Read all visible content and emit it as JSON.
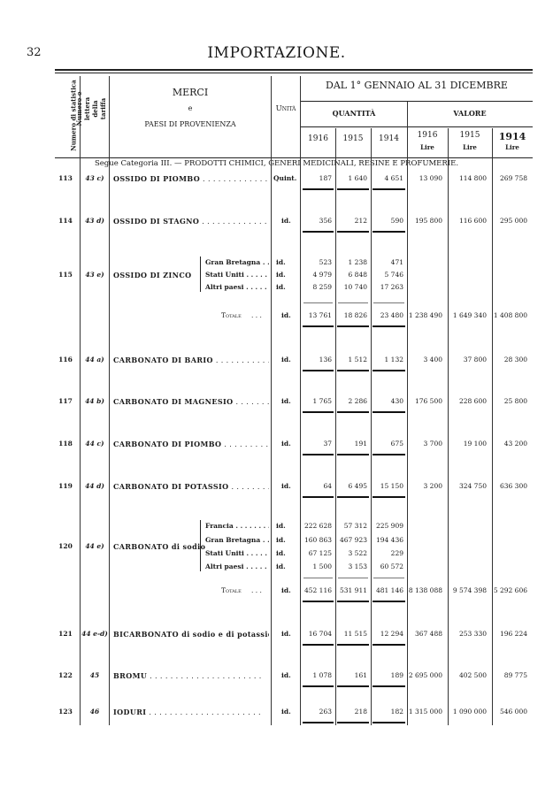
{
  "page_number": "32",
  "title": "IMPORTAZIONE.",
  "header": {
    "col_num_stat": "Numero di statistica",
    "col_tariff": "Numero o lettera della tariffa",
    "merci": "MERCI",
    "e": "e",
    "paesi": "PAESI DI PROVENIENZA",
    "unita": "Unità",
    "period": "DAL 1° GENNAIO AL 31 DICEMBRE",
    "quantita": "QUANTITÀ",
    "valore": "VALORE",
    "years_q": [
      "1916",
      "1915",
      "1914"
    ],
    "years_v": [
      "1916",
      "1915",
      "1914"
    ],
    "lire": "Lire"
  },
  "section": "Segue Categoria III. — PRODOTTI CHIMICI, GENERI MEDICINALI, RESINE E PROFUMERIE.",
  "rows": [
    {
      "num": "113",
      "tariff": "43 c)",
      "name": "OSSIDO DI PIOMBO",
      "unit": "Quint.",
      "q": [
        "187",
        "1 640",
        "4 651"
      ],
      "v": [
        "13 090",
        "114 800",
        "269 758"
      ]
    },
    {
      "num": "114",
      "tariff": "43 d)",
      "name": "OSSIDO DI STAGNO",
      "unit": "id.",
      "q": [
        "356",
        "212",
        "590"
      ],
      "v": [
        "195 800",
        "116 600",
        "295 000"
      ]
    },
    {
      "num": "115",
      "tariff": "43 e)",
      "name": "OSSIDO DI ZINCO",
      "unit": "id.",
      "subs": [
        {
          "country": "Gran Bretagna",
          "unit": "id.",
          "q": [
            "523",
            "1 238",
            "471"
          ]
        },
        {
          "country": "Stati Uniti",
          "unit": "id.",
          "q": [
            "4 979",
            "6 848",
            "5 746"
          ]
        },
        {
          "country": "Altri paesi",
          "unit": "id.",
          "q": [
            "8 259",
            "10 740",
            "17 263"
          ]
        }
      ],
      "total": {
        "label": "Totale",
        "unit": "id.",
        "q": [
          "13 761",
          "18 826",
          "23 480"
        ],
        "v": [
          "1 238 490",
          "1 649 340",
          "1 408 800"
        ]
      }
    },
    {
      "num": "116",
      "tariff": "44 a)",
      "name": "CARBONATO DI BARIO",
      "unit": "id.",
      "q": [
        "136",
        "1 512",
        "1 132"
      ],
      "v": [
        "3 400",
        "37 800",
        "28 300"
      ]
    },
    {
      "num": "117",
      "tariff": "44 b)",
      "name": "CARBONATO DI MAGNESIO",
      "unit": "id.",
      "q": [
        "1 765",
        "2 286",
        "430"
      ],
      "v": [
        "176 500",
        "228 600",
        "25 800"
      ]
    },
    {
      "num": "118",
      "tariff": "44 c)",
      "name": "CARBONATO DI PIOMBO",
      "unit": "id.",
      "q": [
        "37",
        "191",
        "675"
      ],
      "v": [
        "3 700",
        "19 100",
        "43 200"
      ]
    },
    {
      "num": "119",
      "tariff": "44 d)",
      "name": "CARBONATO DI POTASSIO",
      "unit": "id.",
      "q": [
        "64",
        "6 495",
        "15 150"
      ],
      "v": [
        "3 200",
        "324 750",
        "636 300"
      ]
    },
    {
      "num": "120",
      "tariff": "44 e)",
      "name": "CARBONATO di sodio",
      "unit": "id.",
      "subs": [
        {
          "country": "Francia",
          "unit": "id.",
          "q": [
            "222 628",
            "57 312",
            "225 909"
          ]
        },
        {
          "country": "Gran Bretagna",
          "unit": "id.",
          "q": [
            "160 863",
            "467 923",
            "194 436"
          ]
        },
        {
          "country": "Stati Uniti",
          "unit": "id.",
          "q": [
            "67 125",
            "3 522",
            "229"
          ]
        },
        {
          "country": "Altri paesi",
          "unit": "id.",
          "q": [
            "1 500",
            "3 153",
            "60 572"
          ]
        }
      ],
      "total": {
        "label": "Totale",
        "unit": "id.",
        "q": [
          "452 116",
          "531 911",
          "481 146"
        ],
        "v": [
          "8 138 088",
          "9 574 398",
          "5 292 606"
        ]
      }
    },
    {
      "num": "121",
      "tariff": "44 e-d)",
      "name": "BICARBONATO di sodio e di potassio",
      "unit": "id.",
      "q": [
        "16 704",
        "11 515",
        "12 294"
      ],
      "v": [
        "367 488",
        "253 330",
        "196 224"
      ]
    },
    {
      "num": "122",
      "tariff": "45",
      "name": "BROMU",
      "unit": "id.",
      "q": [
        "1 078",
        "161",
        "189"
      ],
      "v": [
        "2 695 000",
        "402 500",
        "89 775"
      ]
    },
    {
      "num": "123",
      "tariff": "46",
      "name": "IODURI",
      "unit": "id.",
      "q": [
        "263",
        "218",
        "182"
      ],
      "v": [
        "1 315 000",
        "1 090 000",
        "546 000"
      ]
    }
  ]
}
